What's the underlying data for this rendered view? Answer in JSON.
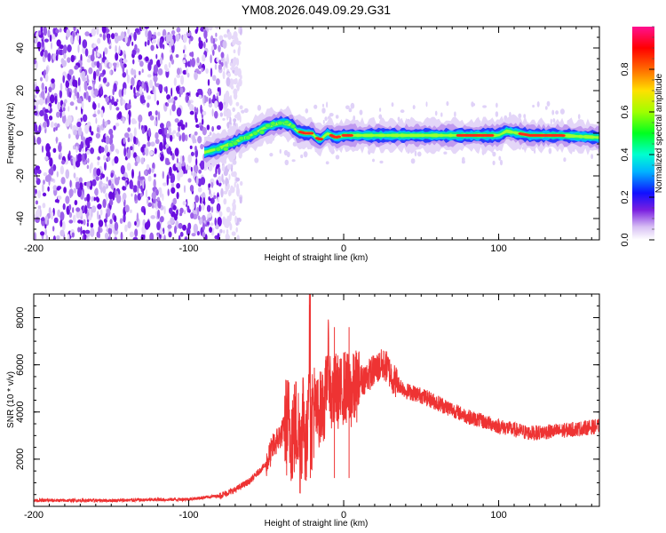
{
  "title": "YM08.2026.049.09.29.G31",
  "chart_data": [
    {
      "type": "heatmap",
      "name": "spectrogram",
      "xlabel": "Height of straight line (km)",
      "ylabel": "Frequency (Hz)",
      "xlim": [
        -200,
        165
      ],
      "ylim": [
        -50,
        50
      ],
      "x_ticks": [
        -200,
        -100,
        0,
        100
      ],
      "x_tick_labels": [
        "-200",
        "-100",
        "0",
        "100"
      ],
      "y_ticks": [
        -40,
        -20,
        0,
        20,
        40
      ],
      "y_tick_labels": [
        "-40",
        "-20",
        "0",
        "20",
        "40"
      ],
      "signal_trace": {
        "x": [
          -90,
          -80,
          -70,
          -60,
          -50,
          -40,
          -34,
          -30,
          -25,
          -20,
          -18,
          -15,
          -12,
          -10,
          -8,
          -5,
          0,
          10,
          30,
          50,
          75,
          90,
          100,
          105,
          120,
          140,
          165
        ],
        "y": [
          -9,
          -7,
          -4,
          -1,
          3,
          5,
          4,
          1,
          0,
          0,
          -2,
          -3,
          -1,
          0,
          -1,
          -2,
          -1,
          -1,
          -1,
          -1,
          -1,
          -1,
          -1,
          1,
          -1,
          -1,
          -2
        ]
      },
      "noise_region_x": [
        -200,
        -78
      ],
      "colorbar": {
        "label": "Normalized spectral amplitude",
        "range": [
          0,
          1
        ],
        "ticks": [
          0.0,
          0.2,
          0.4,
          0.6,
          0.8
        ],
        "tick_labels": [
          "0.0",
          "0.2",
          "0.4",
          "0.6",
          "0.8"
        ]
      }
    },
    {
      "type": "line",
      "name": "snr",
      "xlabel": "Height of straight line (km)",
      "ylabel": "SNR (10 * v/v)",
      "xlim": [
        -200,
        165
      ],
      "ylim": [
        0,
        9000
      ],
      "x_ticks": [
        -200,
        -100,
        0,
        100
      ],
      "x_tick_labels": [
        "-200",
        "-100",
        "0",
        "100"
      ],
      "y_ticks": [
        2000,
        4000,
        6000,
        8000
      ],
      "y_tick_labels": [
        "2000",
        "4000",
        "6000",
        "8000"
      ],
      "series": [
        {
          "name": "SNR",
          "color": "#ee3333",
          "x": [
            -200,
            -150,
            -100,
            -80,
            -70,
            -60,
            -50,
            -45,
            -40,
            -36,
            -33,
            -30,
            -28,
            -26,
            -24,
            -22,
            -21,
            -20,
            -18,
            -15,
            -12,
            -10,
            -8,
            -5,
            -2,
            0,
            5,
            10,
            15,
            20,
            25,
            28,
            32,
            40,
            50,
            60,
            80,
            100,
            120,
            140,
            165
          ],
          "values": [
            250,
            250,
            300,
            450,
            700,
            1100,
            1800,
            2600,
            3100,
            3500,
            3000,
            3600,
            2500,
            4200,
            2000,
            7500,
            3000,
            4300,
            3800,
            4200,
            4400,
            6400,
            4500,
            5000,
            4700,
            5100,
            4800,
            5300,
            5500,
            5800,
            6000,
            5900,
            5400,
            4900,
            4700,
            4400,
            3800,
            3400,
            3100,
            3200,
            3400
          ]
        }
      ]
    }
  ]
}
